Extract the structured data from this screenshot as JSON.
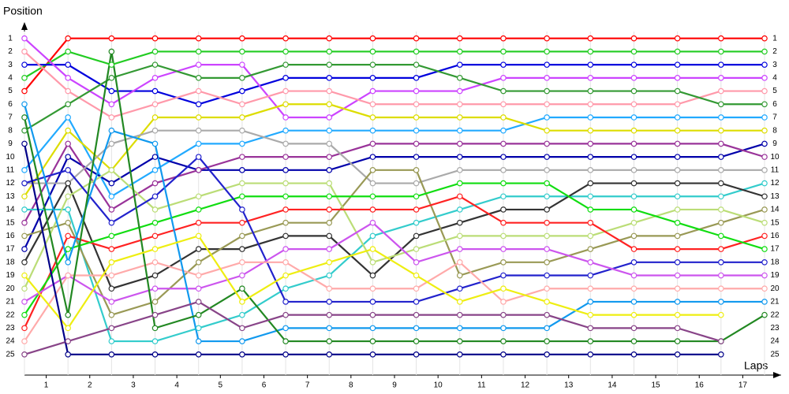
{
  "chart_data": {
    "type": "line",
    "ylabel": "Position",
    "xlabel": "Laps",
    "x": [
      0,
      1,
      2,
      3,
      4,
      5,
      6,
      7,
      8,
      9,
      10,
      11,
      12,
      13,
      14,
      15,
      16,
      17
    ],
    "xlim": [
      0,
      17
    ],
    "ylim": [
      0,
      26
    ],
    "y_inverted": true,
    "grid": true,
    "xticks": [
      {
        "value": 0.5,
        "label": "1"
      },
      {
        "value": 1.5,
        "label": "2"
      },
      {
        "value": 2.5,
        "label": "3"
      },
      {
        "value": 3.5,
        "label": "4"
      },
      {
        "value": 4.5,
        "label": "5"
      },
      {
        "value": 5.5,
        "label": "6"
      },
      {
        "value": 6.5,
        "label": "7"
      },
      {
        "value": 7.5,
        "label": "8"
      },
      {
        "value": 8.5,
        "label": "9"
      },
      {
        "value": 9.5,
        "label": "10"
      },
      {
        "value": 10.5,
        "label": "11"
      },
      {
        "value": 11.5,
        "label": "12"
      },
      {
        "value": 12.5,
        "label": "13"
      },
      {
        "value": 13.5,
        "label": "14"
      },
      {
        "value": 14.5,
        "label": "15"
      },
      {
        "value": 15.5,
        "label": "16"
      },
      {
        "value": 16.5,
        "label": "17"
      }
    ],
    "yticks": [
      1,
      2,
      3,
      4,
      5,
      6,
      7,
      8,
      9,
      10,
      11,
      12,
      13,
      14,
      15,
      16,
      17,
      18,
      19,
      20,
      21,
      22,
      23,
      24,
      25
    ],
    "series": [
      {
        "color": "#ff0000",
        "values": [
          5,
          1,
          1,
          1,
          1,
          1,
          1,
          1,
          1,
          1,
          1,
          1,
          1,
          1,
          1,
          1,
          1,
          1
        ]
      },
      {
        "color": "#22cc22",
        "values": [
          4,
          2,
          3,
          2,
          2,
          2,
          2,
          2,
          2,
          2,
          2,
          2,
          2,
          2,
          2,
          2,
          2,
          2
        ]
      },
      {
        "color": "#0000dd",
        "values": [
          3,
          3,
          5,
          5,
          6,
          5,
          4,
          4,
          4,
          4,
          3,
          3,
          3,
          3,
          3,
          3,
          3,
          3
        ]
      },
      {
        "color": "#cc44ff",
        "values": [
          1,
          4,
          6,
          4,
          3,
          3,
          7,
          7,
          5,
          5,
          5,
          4,
          4,
          4,
          4,
          4,
          4,
          4
        ]
      },
      {
        "color": "#ff99aa",
        "values": [
          2,
          5,
          7,
          6,
          5,
          6,
          5,
          5,
          6,
          6,
          6,
          6,
          6,
          6,
          6,
          6,
          5,
          5
        ]
      },
      {
        "color": "#339933",
        "values": [
          8,
          6,
          4,
          3,
          4,
          4,
          3,
          3,
          3,
          3,
          4,
          5,
          5,
          5,
          5,
          5,
          6,
          6
        ]
      },
      {
        "color": "#22aaff",
        "values": [
          11,
          7,
          13,
          11,
          9,
          9,
          8,
          8,
          8,
          8,
          8,
          8,
          7,
          7,
          7,
          7,
          7,
          7
        ]
      },
      {
        "color": "#dddd00",
        "values": [
          13,
          8,
          11,
          7,
          7,
          7,
          6,
          6,
          7,
          7,
          7,
          7,
          8,
          8,
          8,
          8,
          8,
          8
        ]
      },
      {
        "color": "#0000aa",
        "values": [
          17,
          10,
          12,
          10,
          11,
          11,
          11,
          11,
          10,
          10,
          10,
          10,
          10,
          10,
          10,
          10,
          10,
          9
        ]
      },
      {
        "color": "#993399",
        "values": [
          15,
          9,
          14,
          12,
          11,
          10,
          10,
          10,
          9,
          9,
          9,
          9,
          9,
          9,
          9,
          9,
          9,
          10
        ]
      },
      {
        "color": "#aaaaaa",
        "values": [
          12,
          12,
          9,
          8,
          8,
          8,
          9,
          9,
          12,
          12,
          11,
          11,
          11,
          11,
          11,
          11,
          11,
          11
        ]
      },
      {
        "color": "#33cccc",
        "values": [
          14,
          14,
          24,
          24,
          23,
          22,
          20,
          19,
          16,
          15,
          14,
          13,
          13,
          13,
          13,
          13,
          13,
          12
        ]
      },
      {
        "color": "#333333",
        "values": [
          18,
          12,
          20,
          19,
          17,
          17,
          16,
          16,
          19,
          16,
          15,
          14,
          14,
          12,
          12,
          12,
          12,
          13
        ]
      },
      {
        "color": "#999955",
        "values": [
          16,
          15,
          22,
          21,
          18,
          16,
          15,
          15,
          11,
          11,
          19,
          18,
          18,
          17,
          16,
          16,
          15,
          14
        ]
      },
      {
        "color": "#bbdd77",
        "values": [
          20,
          13,
          11,
          14,
          13,
          12,
          12,
          12,
          18,
          17,
          16,
          16,
          16,
          16,
          15,
          14,
          14,
          15
        ]
      },
      {
        "color": "#ff2222",
        "values": [
          23,
          16,
          17,
          16,
          15,
          15,
          14,
          14,
          14,
          14,
          13,
          15,
          15,
          15,
          17,
          17,
          17,
          16
        ]
      },
      {
        "color": "#11dd11",
        "values": [
          22,
          17,
          16,
          15,
          14,
          13,
          13,
          13,
          13,
          13,
          12,
          12,
          12,
          14,
          14,
          15,
          16,
          17
        ]
      },
      {
        "color": "#2222cc",
        "values": [
          12,
          11,
          15,
          13,
          10,
          14,
          21,
          21,
          21,
          21,
          20,
          19,
          19,
          19,
          18,
          18,
          18,
          18
        ]
      },
      {
        "color": "#cc55ee",
        "values": [
          21,
          19,
          21,
          20,
          20,
          19,
          17,
          17,
          15,
          18,
          17,
          17,
          17,
          18,
          19,
          19,
          19,
          19
        ]
      },
      {
        "color": "#ffaaaa",
        "values": [
          24,
          19,
          19,
          18,
          19,
          18,
          18,
          20,
          20,
          20,
          18,
          21,
          20,
          20,
          20,
          20,
          20,
          20
        ]
      },
      {
        "color": "#1199ee",
        "values": [
          6,
          18,
          8,
          9,
          24,
          24,
          23,
          23,
          23,
          23,
          23,
          23,
          23,
          21,
          21,
          21,
          21,
          21
        ]
      },
      {
        "color": "#228822",
        "values": [
          7,
          22,
          2,
          23,
          22,
          20,
          24,
          24,
          24,
          24,
          24,
          24,
          24,
          24,
          24,
          24,
          24,
          22
        ]
      },
      {
        "color": "#eeee11",
        "values": [
          19,
          23,
          18,
          17,
          16,
          21,
          19,
          18,
          17,
          19,
          21,
          20,
          21,
          22,
          22,
          22,
          22,
          null
        ]
      },
      {
        "color": "#884488",
        "values": [
          25,
          24,
          23,
          22,
          21,
          23,
          22,
          22,
          22,
          22,
          22,
          22,
          22,
          23,
          23,
          23,
          24,
          null
        ]
      },
      {
        "color": "#000088",
        "values": [
          9,
          25,
          25,
          25,
          25,
          25,
          25,
          25,
          25,
          25,
          25,
          25,
          25,
          25,
          25,
          25,
          25,
          null
        ]
      }
    ]
  }
}
